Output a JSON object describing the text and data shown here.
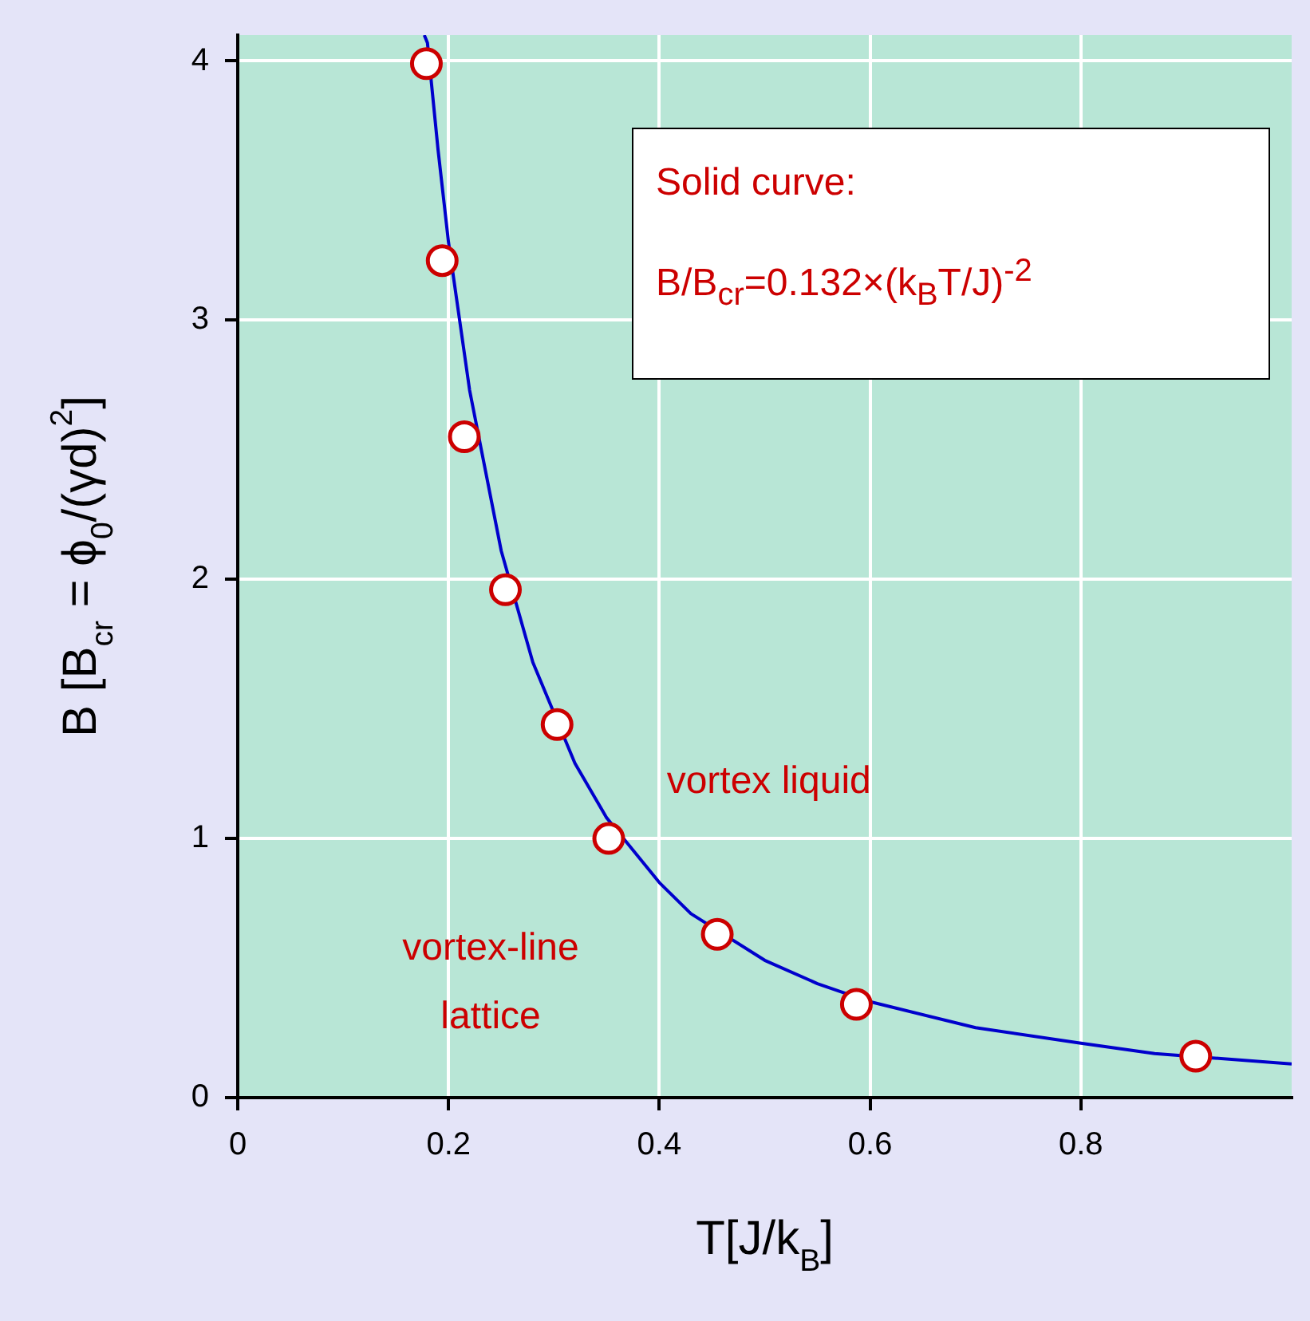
{
  "chart_data": {
    "type": "scatter",
    "xlabel": "T[J/k$_{B}$]",
    "ylabel": "B [B$_{cr}$ = ϕ$_{0}$/(γd)$^{2}$]",
    "annotations": [
      "Solid curve:",
      "B/B$_{cr}$=0.132×(k$_{B}$T/J)$^{-2}$",
      "vortex liquid",
      "vortex-line lattice"
    ],
    "series": [
      {
        "type": "line",
        "color": "#0000cc",
        "marker": "none",
        "x": [
          0.177,
          0.18,
          0.19,
          0.2,
          0.22,
          0.25,
          0.28,
          0.32,
          0.35,
          0.4,
          0.43,
          0.5,
          0.55,
          0.6,
          0.7,
          0.8,
          0.87,
          1.0
        ],
        "values": [
          4.1,
          4.07,
          3.66,
          3.3,
          2.73,
          2.11,
          1.68,
          1.29,
          1.08,
          0.83,
          0.71,
          0.53,
          0.44,
          0.37,
          0.27,
          0.21,
          0.17,
          0.13
        ]
      },
      {
        "color": "#cc0000",
        "marker": "circle",
        "x": [
          0.179,
          0.194,
          0.215,
          0.254,
          0.303,
          0.352,
          0.455,
          0.587,
          0.909
        ],
        "values": [
          3.99,
          3.23,
          2.55,
          1.96,
          1.44,
          1.0,
          0.63,
          0.36,
          0.16
        ]
      }
    ],
    "xlim": [
      0,
      1
    ],
    "ylim": [
      0,
      4.1
    ],
    "xticks": [
      0,
      0.2,
      0.4,
      0.6,
      0.8
    ],
    "yticks": [
      0,
      1,
      2,
      3,
      4
    ],
    "grid": true,
    "legend": false
  }
}
